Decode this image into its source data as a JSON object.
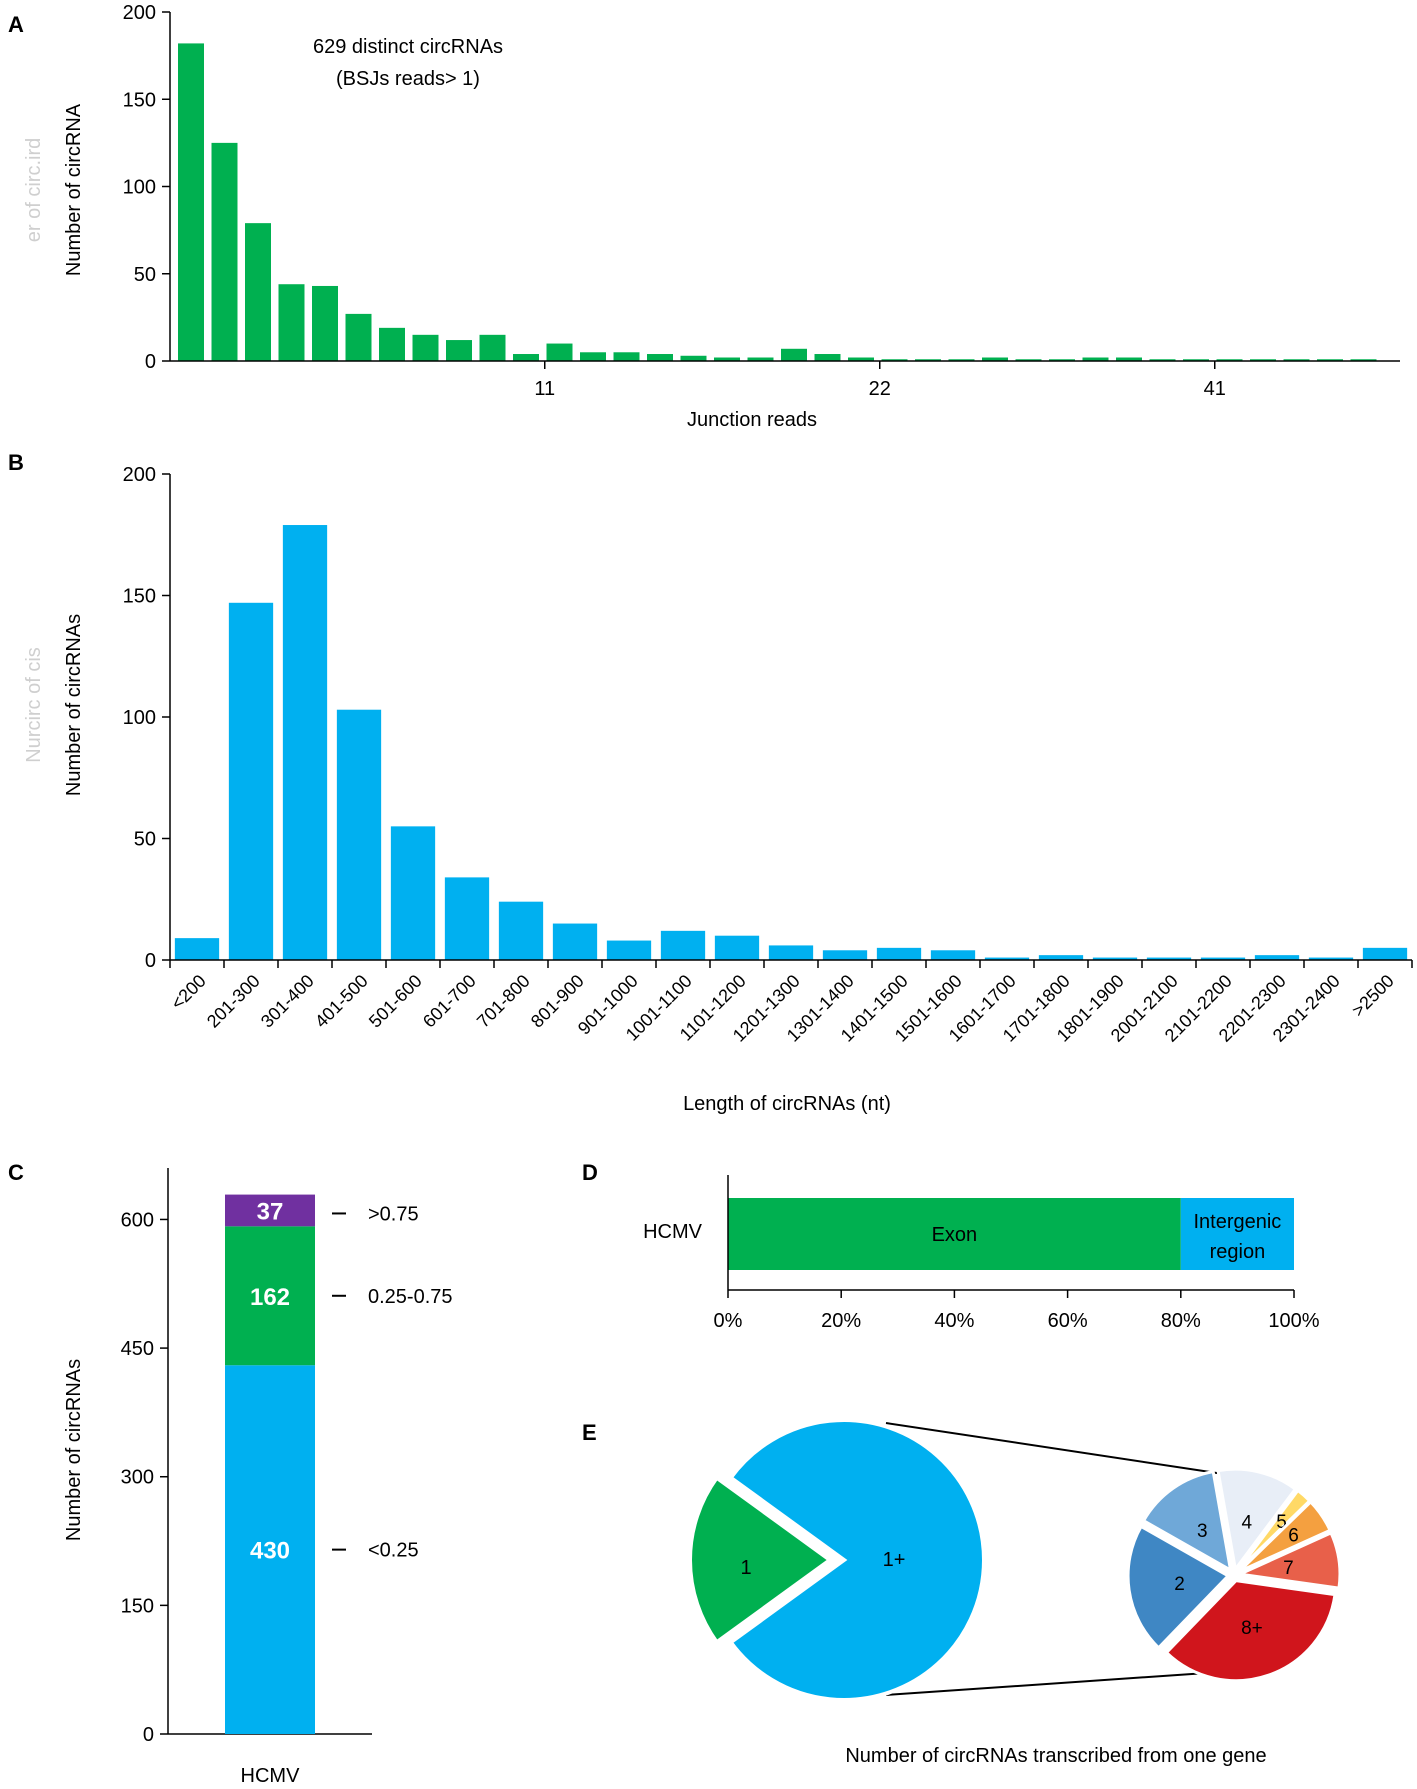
{
  "chart_data": [
    {
      "panel": "A",
      "type": "bar",
      "xlabel": "Junction reads",
      "ylabel": "Number of circRNA",
      "ghost_ylabel": "er of circ.ird",
      "annotation": [
        "629 distinct circRNAs",
        "(BSJs  reads> 1)"
      ],
      "ylim": [
        0,
        200
      ],
      "yticks": [
        0,
        50,
        100,
        150,
        200
      ],
      "xtick_labels": [
        {
          "label": "11",
          "index": 10
        },
        {
          "label": "22",
          "index": 20
        },
        {
          "label": "41",
          "index": 30
        }
      ],
      "values": [
        182,
        125,
        79,
        44,
        43,
        27,
        19,
        15,
        12,
        15,
        4,
        10,
        5,
        5,
        4,
        3,
        2,
        2,
        7,
        4,
        2,
        1,
        1,
        1,
        2,
        1,
        1,
        2,
        2,
        1,
        1,
        1,
        1,
        1,
        1,
        1
      ],
      "color": "#00b050"
    },
    {
      "panel": "B",
      "type": "bar",
      "xlabel": "Length of circRNAs (nt)",
      "ylabel": "Number of circRNAs",
      "ghost_ylabel": "Nurcirc of cis",
      "ylim": [
        0,
        200
      ],
      "yticks": [
        0,
        50,
        100,
        150,
        200
      ],
      "categories": [
        "<200",
        "201-300",
        "301-400",
        "401-500",
        "501-600",
        "601-700",
        "701-800",
        "801-900",
        "901-1000",
        "1001-1100",
        "1101-1200",
        "1201-1300",
        "1301-1400",
        "1401-1500",
        "1501-1600",
        "1601-1700",
        "1701-1800",
        "1801-1900",
        "2001-2100",
        "2101-2200",
        "2201-2300",
        "2301-2400",
        ">2500"
      ],
      "values": [
        9,
        147,
        179,
        103,
        55,
        34,
        24,
        15,
        8,
        12,
        10,
        6,
        4,
        5,
        4,
        1,
        2,
        1,
        1,
        1,
        2,
        1,
        5
      ],
      "color": "#00b0f0"
    },
    {
      "panel": "C",
      "type": "bar",
      "stacked": true,
      "ylabel": "Number of circRNAs",
      "ylim": [
        0,
        660
      ],
      "yticks": [
        0,
        150,
        300,
        450,
        600
      ],
      "categories": [
        "HCMV"
      ],
      "series": [
        {
          "name": "<0.25",
          "values": [
            430
          ],
          "color": "#00b0f0"
        },
        {
          "name": "0.25-0.75",
          "values": [
            162
          ],
          "color": "#00b050"
        },
        {
          "name": ">0.75",
          "values": [
            37
          ],
          "color": "#7030a0"
        }
      ]
    },
    {
      "panel": "D",
      "type": "bar",
      "orientation": "horizontal",
      "stacked": true,
      "categories": [
        "HCMV"
      ],
      "xlim": [
        0,
        100
      ],
      "xtick_labels": [
        "0%",
        "20%",
        "40%",
        "60%",
        "80%",
        "100%"
      ],
      "series": [
        {
          "name": "Exon",
          "values": [
            80
          ],
          "color": "#00b050"
        },
        {
          "name": "Intergenic region",
          "label_lines": [
            "Intergenic",
            "region"
          ],
          "values": [
            20
          ],
          "color": "#00b0f0"
        }
      ]
    },
    {
      "panel": "E",
      "type": "pie",
      "title": "Number of circRNAs transcribed from one gene",
      "main": {
        "slices": [
          {
            "label": "1",
            "value": 20,
            "color": "#00b050"
          },
          {
            "label": "1+",
            "value": 80,
            "color": "#00b0f0"
          }
        ]
      },
      "detail": {
        "slices": [
          {
            "label": "4",
            "value": 13,
            "color": "#e8eef7"
          },
          {
            "label": "5",
            "value": 2.5,
            "color": "#ffd966"
          },
          {
            "label": "6",
            "value": 5.5,
            "color": "#f4a040"
          },
          {
            "label": "7",
            "value": 9,
            "color": "#e8604a"
          },
          {
            "label": "8+",
            "value": 35,
            "color": "#d0151c"
          },
          {
            "label": "2",
            "value": 21,
            "color": "#3f87c4"
          },
          {
            "label": "3",
            "value": 14,
            "color": "#6fa8d8"
          }
        ]
      }
    }
  ]
}
